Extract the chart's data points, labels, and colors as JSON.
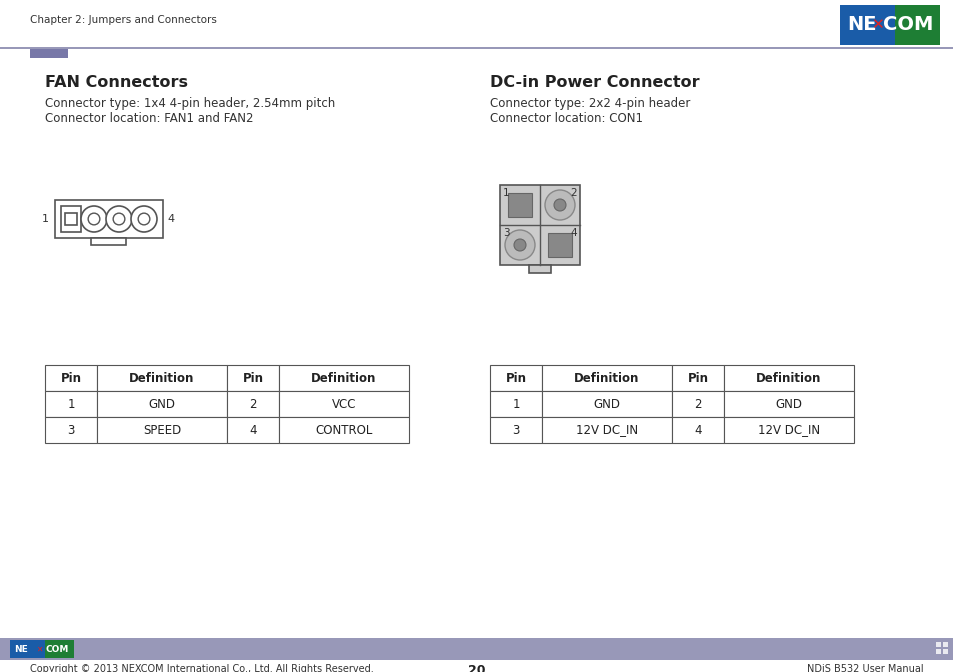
{
  "page_title": "Chapter 2: Jumpers and Connectors",
  "page_number": "20",
  "footer_left": "Copyright © 2013 NEXCOM International Co., Ltd. All Rights Reserved.",
  "footer_right": "NDiS B532 User Manual",
  "bg_color": "#ffffff",
  "nexcom_blue": "#1a7a2e",
  "nexcom_logo_blue": "#1a5ca8",
  "section1_title": "FAN Connectors",
  "section1_line1": "Connector type: 1x4 4-pin header, 2.54mm pitch",
  "section1_line2": "Connector location: FAN1 and FAN2",
  "section2_title": "DC-in Power Connector",
  "section2_line1": "Connector type: 2x2 4-pin header",
  "section2_line2": "Connector location: CON1",
  "fan_table_headers": [
    "Pin",
    "Definition",
    "Pin",
    "Definition"
  ],
  "fan_table_data": [
    [
      "1",
      "GND",
      "2",
      "VCC"
    ],
    [
      "3",
      "SPEED",
      "4",
      "CONTROL"
    ]
  ],
  "dc_table_headers": [
    "Pin",
    "Definition",
    "Pin",
    "Definition"
  ],
  "dc_table_data": [
    [
      "1",
      "GND",
      "2",
      "GND"
    ],
    [
      "3",
      "12V DC_IN",
      "4",
      "12V DC_IN"
    ]
  ],
  "header_line_color": "#9898b8",
  "header_accent_color": "#7878a8",
  "footer_bar_color": "#9898b8",
  "table_border_color": "#555555",
  "text_color": "#222222",
  "subtext_color": "#333333",
  "pin_edge_color": "#555555",
  "pin_fill_gray": "#aaaaaa",
  "pin_fill_dark": "#888888",
  "connector_edge": "#555555"
}
